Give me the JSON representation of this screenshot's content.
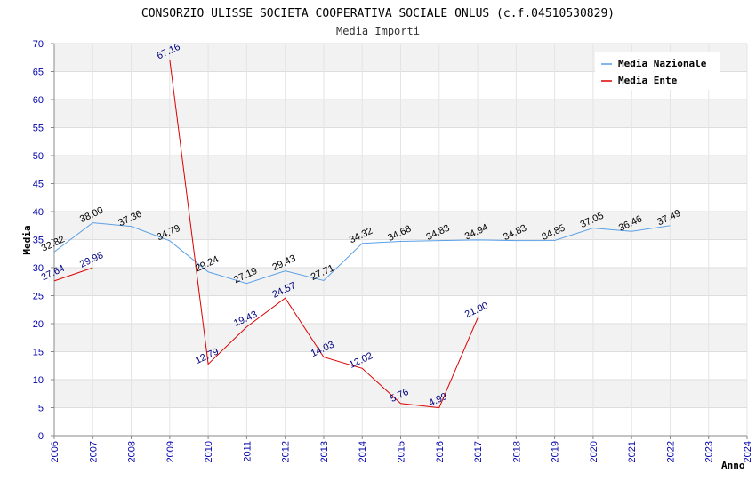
{
  "chart_data": {
    "type": "line",
    "title": "CONSORZIO ULISSE SOCIETA COOPERATIVA SOCIALE ONLUS (c.f.04510530829)",
    "subtitle": "Media Importi",
    "xlabel": "Anno",
    "ylabel": "Media",
    "xlim": [
      2006,
      2024
    ],
    "ylim": [
      0,
      70
    ],
    "x_ticks": [
      "2006",
      "2007",
      "2008",
      "2009",
      "2010",
      "2011",
      "2012",
      "2013",
      "2014",
      "2015",
      "2016",
      "2017",
      "2018",
      "2019",
      "2020",
      "2021",
      "2022",
      "2023",
      "2024"
    ],
    "y_ticks": [
      "0",
      "5",
      "10",
      "15",
      "20",
      "25",
      "30",
      "35",
      "40",
      "45",
      "50",
      "55",
      "60",
      "65",
      "70"
    ],
    "legend_position": "top-right",
    "series": [
      {
        "name": "Media Nazionale",
        "color": "#5aa0e6",
        "label_color": "#000000",
        "x": [
          2006,
          2007,
          2008,
          2009,
          2010,
          2011,
          2012,
          2013,
          2014,
          2015,
          2016,
          2017,
          2018,
          2019,
          2020,
          2021,
          2022
        ],
        "values": [
          32.82,
          38.0,
          37.36,
          34.79,
          29.24,
          27.19,
          29.43,
          27.71,
          34.32,
          34.68,
          34.83,
          34.94,
          34.83,
          34.85,
          37.05,
          36.46,
          37.49
        ],
        "labels": [
          "32.82",
          "38.00",
          "37.36",
          "34.79",
          "29.24",
          "27.19",
          "29.43",
          "27.71",
          "34.32",
          "34.68",
          "34.83",
          "34.94",
          "34.83",
          "34.85",
          "37.05",
          "36.46",
          "37.49"
        ]
      },
      {
        "name": "Media Ente",
        "color": "#dd0000",
        "label_color": "#000080",
        "segments": [
          {
            "x": [
              2006,
              2007
            ],
            "values": [
              27.64,
              29.98
            ],
            "labels": [
              "27.64",
              "29.98"
            ]
          },
          {
            "x": [
              2009,
              2010,
              2011,
              2012,
              2013,
              2014,
              2015,
              2016,
              2017
            ],
            "values": [
              67.16,
              12.79,
              19.43,
              24.57,
              14.03,
              12.02,
              5.76,
              4.99,
              21.0
            ],
            "labels": [
              "67.16",
              "12.79",
              "19.43",
              "24.57",
              "14.03",
              "12.02",
              "5.76",
              "4.99",
              "21.00"
            ]
          }
        ]
      }
    ]
  }
}
